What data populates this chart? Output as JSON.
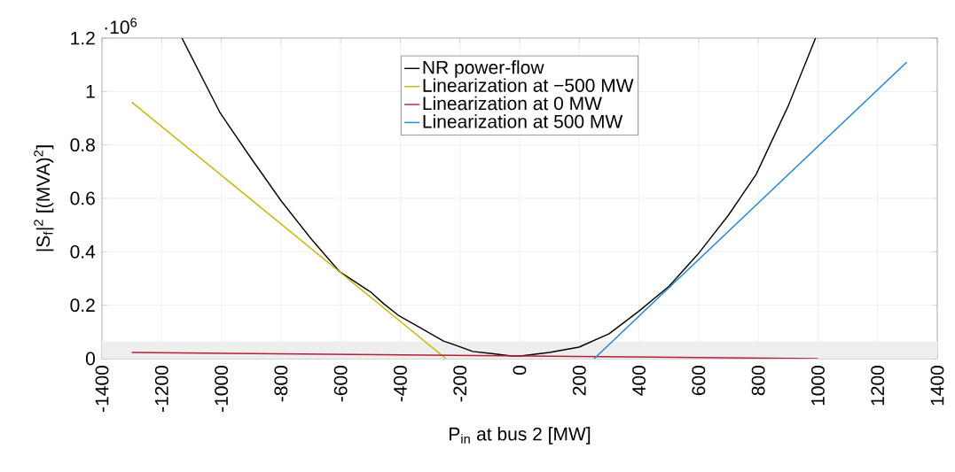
{
  "chart_data": {
    "type": "line",
    "xlabel": "P$_{in}$ at bus 2 [MW]",
    "ylabel": "|S$_{f}$|$^{2}$ [(MVA)$^{2}$]",
    "annotations": [
      "·10$^{6}$"
    ],
    "xlim": [
      -1400,
      1400
    ],
    "ylim": [
      0,
      1.2
    ],
    "xticks": [
      -1400,
      -1200,
      -1000,
      -800,
      -600,
      -400,
      -200,
      0,
      200,
      400,
      600,
      800,
      1000,
      1200,
      1400
    ],
    "yticks": [
      0,
      0.2,
      0.4,
      0.6,
      0.8,
      1,
      1.2
    ],
    "grid": true,
    "legend": "top",
    "line_style": "solid",
    "marker": "none",
    "bands": [
      {
        "axis": "y",
        "from": 0,
        "to": 0.065,
        "color": "#eeeeee"
      }
    ],
    "series": [
      {
        "name": "NR power-flow",
        "color": "#000000",
        "x": [
          -1132,
          -1100,
          -1004,
          -900,
          -799,
          -700,
          -603,
          -500,
          -455,
          -404,
          -350,
          -255,
          -157,
          -100,
          -27,
          3,
          100,
          199,
          300,
          398,
          500,
          597,
          700,
          793,
          900,
          992
        ],
        "values": [
          1.2,
          1.13,
          0.92,
          0.75,
          0.59,
          0.45,
          0.325,
          0.25,
          0.205,
          0.16,
          0.126,
          0.066,
          0.027,
          0.02,
          0.01,
          0.01,
          0.023,
          0.043,
          0.093,
          0.176,
          0.27,
          0.39,
          0.537,
          0.69,
          0.945,
          1.2
        ]
      },
      {
        "name": "Linearization at −500 MW",
        "color": "#c9b200",
        "x": [
          -1300,
          -247
        ],
        "values": [
          0.96,
          0
        ]
      },
      {
        "name": "Linearization at 0 MW",
        "color": "#b41f3a",
        "x": [
          -1300,
          1000
        ],
        "values": [
          0.023,
          0
        ]
      },
      {
        "name": "Linearization at 500 MW",
        "color": "#1a86d0",
        "x": [
          250,
          1298
        ],
        "values": [
          0,
          1.11
        ]
      }
    ]
  }
}
